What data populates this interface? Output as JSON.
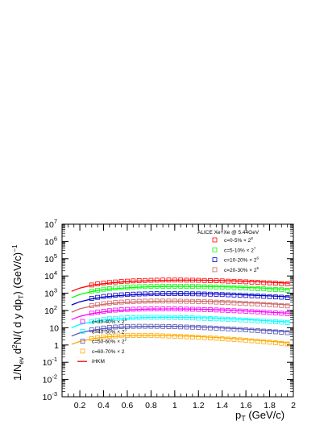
{
  "chart_data": {
    "type": "scatter",
    "title": "",
    "xlabel_main": "p",
    "xlabel_sub": "T",
    "xlabel_units": " (GeV/c)",
    "ylabel_parts": [
      "1/N",
      "ev",
      " d",
      "2",
      "N/( d y  dp",
      "T",
      ")  (GeV/c)",
      "−1"
    ],
    "xlim": [
      0.05,
      2.0
    ],
    "ylim_log10": [
      -3,
      7
    ],
    "y_scale": "log",
    "x_ticks": [
      0.2,
      0.4,
      0.6,
      0.8,
      1.0,
      1.2,
      1.4,
      1.6,
      1.8,
      2.0
    ],
    "x_tick_labels": [
      "0.2",
      "0.4",
      "0.6",
      "0.8",
      "1",
      "1.2",
      "1.4",
      "1.6",
      "1.8",
      "2"
    ],
    "y_tick_exponents": [
      -3,
      -2,
      -1,
      0,
      1,
      2,
      3,
      4,
      5,
      6,
      7
    ],
    "y_tick_labels": [
      {
        "base": "10",
        "exp": "-3"
      },
      {
        "base": "10",
        "exp": "-2"
      },
      {
        "base": "10",
        "exp": "-1"
      },
      {
        "base": "1",
        "exp": ""
      },
      {
        "base": "10",
        "exp": ""
      },
      {
        "base": "10",
        "exp": "2"
      },
      {
        "base": "10",
        "exp": "3"
      },
      {
        "base": "10",
        "exp": "4"
      },
      {
        "base": "10",
        "exp": "5"
      },
      {
        "base": "10",
        "exp": "6"
      },
      {
        "base": "10",
        "exp": "7"
      }
    ],
    "legend_top_header": "ALICE Xe+Xe @ 5.44GeV",
    "legend_position": "top-right and bottom-left",
    "model_name": "iHKM",
    "model_color": "#ff0000",
    "series": [
      {
        "name": "c=0-5% × 2",
        "sup": "8",
        "color": "#ff0000",
        "legend_group": "top",
        "x": [
          0.3,
          0.35,
          0.4,
          0.45,
          0.5,
          0.55,
          0.6,
          0.65,
          0.7,
          0.75,
          0.8,
          0.85,
          0.9,
          0.95,
          1.0,
          1.05,
          1.1,
          1.15,
          1.2,
          1.25,
          1.3,
          1.35,
          1.4,
          1.45,
          1.5,
          1.55,
          1.6,
          1.65,
          1.7,
          1.75,
          1.8,
          1.85,
          1.9,
          1.95
        ],
        "y": [
          3000,
          3500,
          3900,
          4200,
          4500,
          4800,
          5000,
          5200,
          5400,
          5500,
          5600,
          5700,
          5800,
          5800,
          5800,
          5800,
          5700,
          5700,
          5600,
          5500,
          5400,
          5300,
          5200,
          5000,
          4900,
          4700,
          4600,
          4400,
          4300,
          4100,
          4000,
          3800,
          3600,
          3500
        ],
        "model_x": [
          0.13,
          0.2,
          0.3,
          0.4,
          0.5,
          0.6,
          0.7,
          0.8,
          0.9,
          1.0,
          1.1,
          1.2,
          1.3,
          1.4,
          1.5,
          1.6,
          1.7,
          1.8,
          1.9,
          1.97
        ],
        "model_y": [
          1300,
          2000,
          2900,
          3600,
          4200,
          4700,
          5100,
          5400,
          5600,
          5700,
          5700,
          5700,
          5600,
          5400,
          5200,
          4900,
          4600,
          4300,
          4000,
          3800
        ]
      },
      {
        "name": "c=5-10% × 2",
        "sup": "7",
        "color": "#00ff00",
        "legend_group": "top",
        "x": [
          0.3,
          0.35,
          0.4,
          0.45,
          0.5,
          0.55,
          0.6,
          0.65,
          0.7,
          0.75,
          0.8,
          0.85,
          0.9,
          0.95,
          1.0,
          1.05,
          1.1,
          1.15,
          1.2,
          1.25,
          1.3,
          1.35,
          1.4,
          1.45,
          1.5,
          1.55,
          1.6,
          1.65,
          1.7,
          1.75,
          1.8,
          1.85,
          1.9,
          1.95
        ],
        "y": [
          1300,
          1500,
          1700,
          1850,
          2000,
          2150,
          2250,
          2350,
          2400,
          2450,
          2500,
          2550,
          2550,
          2550,
          2550,
          2550,
          2500,
          2500,
          2450,
          2400,
          2350,
          2300,
          2250,
          2200,
          2100,
          2050,
          2000,
          1900,
          1850,
          1800,
          1700,
          1650,
          1600,
          1500
        ],
        "model_x": [
          0.13,
          0.2,
          0.3,
          0.4,
          0.5,
          0.6,
          0.7,
          0.8,
          0.9,
          1.0,
          1.1,
          1.2,
          1.3,
          1.4,
          1.5,
          1.6,
          1.7,
          1.8,
          1.9,
          1.97
        ],
        "model_y": [
          550,
          850,
          1250,
          1600,
          1850,
          2050,
          2250,
          2400,
          2450,
          2500,
          2500,
          2500,
          2450,
          2400,
          2300,
          2150,
          2050,
          1900,
          1750,
          1650
        ]
      },
      {
        "name": "c=10-20% × 2",
        "sup": "6",
        "color": "#0000cc",
        "legend_group": "top",
        "x": [
          0.3,
          0.35,
          0.4,
          0.45,
          0.5,
          0.55,
          0.6,
          0.65,
          0.7,
          0.75,
          0.8,
          0.85,
          0.9,
          0.95,
          1.0,
          1.05,
          1.1,
          1.15,
          1.2,
          1.25,
          1.3,
          1.35,
          1.4,
          1.45,
          1.5,
          1.55,
          1.6,
          1.65,
          1.7,
          1.75,
          1.8,
          1.85,
          1.9,
          1.95
        ],
        "y": [
          500,
          580,
          650,
          710,
          760,
          810,
          850,
          880,
          900,
          920,
          940,
          950,
          950,
          950,
          950,
          950,
          940,
          930,
          920,
          900,
          880,
          860,
          840,
          810,
          790,
          760,
          740,
          710,
          690,
          660,
          640,
          610,
          590,
          560
        ],
        "model_x": [
          0.13,
          0.2,
          0.3,
          0.4,
          0.5,
          0.6,
          0.7,
          0.8,
          0.9,
          1.0,
          1.1,
          1.2,
          1.3,
          1.4,
          1.5,
          1.6,
          1.7,
          1.8,
          1.9,
          1.97
        ],
        "model_y": [
          210,
          320,
          470,
          600,
          700,
          780,
          840,
          890,
          920,
          940,
          940,
          940,
          920,
          890,
          850,
          800,
          750,
          700,
          650,
          610
        ]
      },
      {
        "name": "c=20-30% × 2",
        "sup": "5",
        "color": "#cc6666",
        "legend_group": "top",
        "x": [
          0.3,
          0.35,
          0.4,
          0.45,
          0.5,
          0.55,
          0.6,
          0.65,
          0.7,
          0.75,
          0.8,
          0.85,
          0.9,
          0.95,
          1.0,
          1.05,
          1.1,
          1.15,
          1.2,
          1.25,
          1.3,
          1.35,
          1.4,
          1.45,
          1.5,
          1.55,
          1.6,
          1.65,
          1.7,
          1.75,
          1.8,
          1.85,
          1.9,
          1.95
        ],
        "y": [
          190,
          220,
          250,
          270,
          290,
          305,
          320,
          330,
          340,
          345,
          350,
          350,
          350,
          350,
          350,
          345,
          340,
          335,
          330,
          320,
          315,
          305,
          295,
          285,
          275,
          265,
          255,
          245,
          235,
          225,
          215,
          205,
          195,
          185
        ],
        "model_x": [
          0.13,
          0.2,
          0.3,
          0.4,
          0.5,
          0.6,
          0.7,
          0.8,
          0.9,
          1.0,
          1.1,
          1.2,
          1.3,
          1.4,
          1.5,
          1.6,
          1.7,
          1.8,
          1.9,
          1.97
        ],
        "model_y": [
          80,
          125,
          180,
          230,
          270,
          300,
          320,
          335,
          345,
          350,
          350,
          345,
          335,
          320,
          305,
          285,
          265,
          245,
          225,
          210
        ]
      },
      {
        "name": "c=30-40% × 2",
        "sup": "4",
        "color": "#ff00ff",
        "legend_group": "bottom",
        "x": [
          0.3,
          0.35,
          0.4,
          0.45,
          0.5,
          0.55,
          0.6,
          0.65,
          0.7,
          0.75,
          0.8,
          0.85,
          0.9,
          0.95,
          1.0,
          1.05,
          1.1,
          1.15,
          1.2,
          1.25,
          1.3,
          1.35,
          1.4,
          1.45,
          1.5,
          1.55,
          1.6,
          1.65,
          1.7,
          1.75,
          1.8,
          1.85,
          1.9,
          1.95
        ],
        "y": [
          70,
          80,
          90,
          98,
          105,
          110,
          115,
          118,
          120,
          122,
          123,
          124,
          124,
          124,
          123,
          122,
          120,
          118,
          116,
          113,
          110,
          107,
          104,
          100,
          97,
          93,
          90,
          86,
          83,
          79,
          76,
          72,
          69,
          66
        ],
        "model_x": [
          0.13,
          0.2,
          0.3,
          0.4,
          0.5,
          0.6,
          0.7,
          0.8,
          0.9,
          1.0,
          1.1,
          1.2,
          1.3,
          1.4,
          1.5,
          1.6,
          1.7,
          1.8,
          1.9,
          1.97
        ],
        "model_y": [
          30,
          46,
          66,
          84,
          98,
          108,
          116,
          121,
          123,
          124,
          122,
          119,
          114,
          108,
          101,
          94,
          87,
          80,
          73,
          69
        ]
      },
      {
        "name": "c=40-50% × 2",
        "sup": "3",
        "color": "#00ffff",
        "legend_group": "bottom",
        "x": [
          0.3,
          0.35,
          0.4,
          0.45,
          0.5,
          0.55,
          0.6,
          0.65,
          0.7,
          0.75,
          0.8,
          0.85,
          0.9,
          0.95,
          1.0,
          1.05,
          1.1,
          1.15,
          1.2,
          1.25,
          1.3,
          1.35,
          1.4,
          1.45,
          1.5,
          1.55,
          1.6,
          1.65,
          1.7,
          1.75,
          1.8,
          1.85,
          1.9,
          1.95
        ],
        "y": [
          23,
          27,
          30,
          33,
          35,
          36.5,
          38,
          39,
          39.5,
          40,
          40,
          40,
          40,
          39.5,
          39,
          38.5,
          38,
          37,
          36,
          35,
          34,
          33,
          32,
          31,
          30,
          28.5,
          27.5,
          26,
          25,
          24,
          23,
          22,
          21,
          20
        ],
        "model_x": [
          0.13,
          0.2,
          0.3,
          0.4,
          0.5,
          0.6,
          0.7,
          0.8,
          0.9,
          1.0,
          1.1,
          1.2,
          1.3,
          1.4,
          1.5,
          1.6,
          1.7,
          1.8,
          1.9,
          1.97
        ],
        "model_y": [
          10,
          15.5,
          22,
          28,
          32.5,
          36,
          38.5,
          40,
          40.5,
          40.5,
          40,
          38.5,
          37,
          35,
          32.5,
          30,
          27.5,
          25,
          23,
          21.5
        ]
      },
      {
        "name": "c=50-60% × 2",
        "sup": "2",
        "color": "#5555bb",
        "legend_group": "bottom",
        "x": [
          0.3,
          0.35,
          0.4,
          0.45,
          0.5,
          0.55,
          0.6,
          0.65,
          0.7,
          0.75,
          0.8,
          0.85,
          0.9,
          0.95,
          1.0,
          1.05,
          1.1,
          1.15,
          1.2,
          1.25,
          1.3,
          1.35,
          1.4,
          1.45,
          1.5,
          1.55,
          1.6,
          1.65,
          1.7,
          1.75,
          1.8,
          1.85,
          1.9,
          1.95
        ],
        "y": [
          7.5,
          8.6,
          9.6,
          10.4,
          11,
          11.5,
          11.8,
          12,
          12.1,
          12.1,
          12.1,
          12,
          11.9,
          11.7,
          11.5,
          11.2,
          11,
          10.7,
          10.4,
          10,
          9.7,
          9.3,
          9,
          8.6,
          8.2,
          7.9,
          7.5,
          7.1,
          6.8,
          6.4,
          6.1,
          5.8,
          5.5,
          5.2
        ],
        "model_x": [
          0.13,
          0.2,
          0.3,
          0.4,
          0.5,
          0.6,
          0.7,
          0.8,
          0.9,
          1.0,
          1.1,
          1.2,
          1.3,
          1.4,
          1.5,
          1.6,
          1.7,
          1.8,
          1.9,
          1.97
        ],
        "model_y": [
          3.3,
          5,
          7.1,
          8.9,
          10.2,
          11.1,
          11.7,
          12,
          12.1,
          12,
          11.6,
          11.1,
          10.5,
          9.8,
          9.1,
          8.3,
          7.6,
          6.9,
          6.2,
          5.8
        ]
      },
      {
        "name": "c=60-70% × 2",
        "sup": "",
        "color": "#ffaa00",
        "legend_group": "bottom",
        "x": [
          0.3,
          0.35,
          0.4,
          0.45,
          0.5,
          0.55,
          0.6,
          0.65,
          0.7,
          0.75,
          0.8,
          0.85,
          0.9,
          0.95,
          1.0,
          1.05,
          1.1,
          1.15,
          1.2,
          1.25,
          1.3,
          1.35,
          1.4,
          1.45,
          1.5,
          1.55,
          1.6,
          1.65,
          1.7,
          1.75,
          1.8,
          1.85,
          1.9,
          1.95
        ],
        "y": [
          2.3,
          2.65,
          2.95,
          3.2,
          3.35,
          3.45,
          3.5,
          3.55,
          3.55,
          3.55,
          3.5,
          3.45,
          3.4,
          3.3,
          3.2,
          3.1,
          3,
          2.9,
          2.8,
          2.65,
          2.55,
          2.45,
          2.3,
          2.2,
          2.1,
          2,
          1.9,
          1.75,
          1.65,
          1.55,
          1.45,
          1.35,
          1.25,
          1.15
        ],
        "model_x": [
          0.13,
          0.2,
          0.3,
          0.4,
          0.5,
          0.6,
          0.7,
          0.8,
          0.9,
          1.0,
          1.1,
          1.2,
          1.3,
          1.4,
          1.5,
          1.6,
          1.7,
          1.8,
          1.9,
          1.97
        ],
        "model_y": [
          1.1,
          1.6,
          2.25,
          2.8,
          3.15,
          3.4,
          3.55,
          3.6,
          3.55,
          3.45,
          3.3,
          3.1,
          2.85,
          2.6,
          2.35,
          2.1,
          1.85,
          1.65,
          1.45,
          1.3
        ]
      }
    ]
  }
}
